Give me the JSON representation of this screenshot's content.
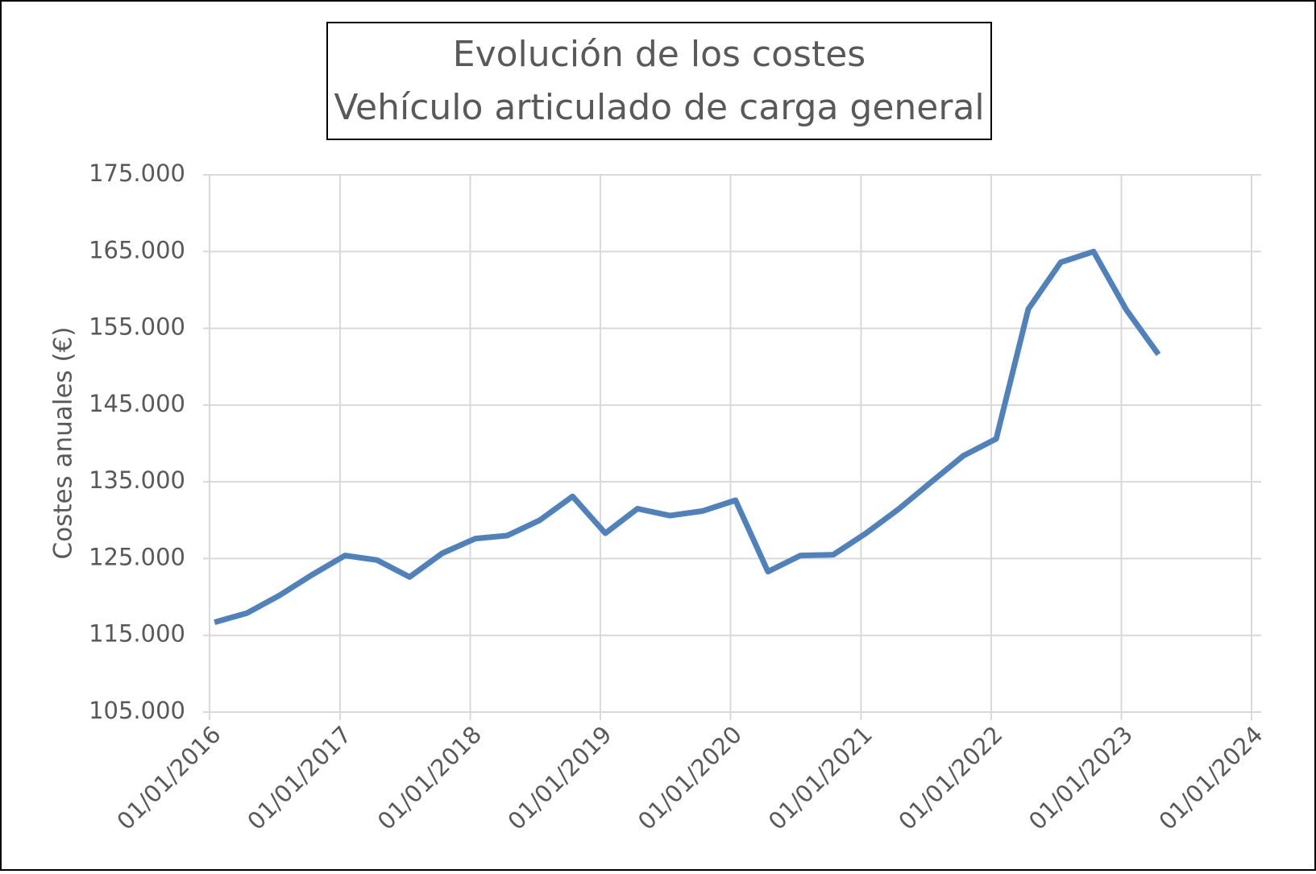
{
  "chart_data": {
    "type": "line",
    "title": "Evolución de los costes",
    "subtitle": "Vehículo articulado de carga general",
    "y_label": "Costes anuales (€)",
    "x": [
      "15/01/2016",
      "15/04/2016",
      "15/07/2016",
      "15/10/2016",
      "15/01/2017",
      "15/04/2017",
      "15/07/2017",
      "15/10/2017",
      "15/01/2018",
      "15/04/2018",
      "15/07/2018",
      "15/10/2018",
      "15/01/2019",
      "15/04/2019",
      "15/07/2019",
      "15/10/2019",
      "15/01/2020",
      "15/04/2020",
      "15/07/2020",
      "15/10/2020",
      "15/01/2021",
      "15/04/2021",
      "15/07/2021",
      "15/10/2021",
      "15/01/2022",
      "15/04/2022",
      "15/07/2022",
      "15/10/2022",
      "15/01/2023",
      "15/04/2023"
    ],
    "series": [
      {
        "color": "#4f81bd",
        "values": [
          116700,
          117900,
          120200,
          122900,
          125400,
          124800,
          122600,
          125700,
          127600,
          128000,
          130000,
          133100,
          128300,
          131500,
          130600,
          131200,
          132600,
          123300,
          125400,
          125500,
          128300,
          131400,
          134900,
          138400,
          140600,
          157500,
          163600,
          165000,
          157400,
          151600
        ]
      }
    ],
    "xlim": [
      "01/01/2016",
      "01/01/2024"
    ],
    "xticks": [
      "01/01/2016",
      "01/01/2017",
      "01/01/2018",
      "01/01/2019",
      "01/01/2020",
      "01/01/2021",
      "01/01/2022",
      "01/01/2023",
      "01/01/2024"
    ],
    "ylim": [
      105000,
      175000
    ],
    "yticks": [
      {
        "value": 105000,
        "label": "105.000"
      },
      {
        "value": 115000,
        "label": "115.000"
      },
      {
        "value": 125000,
        "label": "125.000"
      },
      {
        "value": 135000,
        "label": "135.000"
      },
      {
        "value": 145000,
        "label": "145.000"
      },
      {
        "value": 155000,
        "label": "155.000"
      },
      {
        "value": 165000,
        "label": "165.000"
      },
      {
        "value": 175000,
        "label": "175.000"
      }
    ],
    "grid": true
  }
}
